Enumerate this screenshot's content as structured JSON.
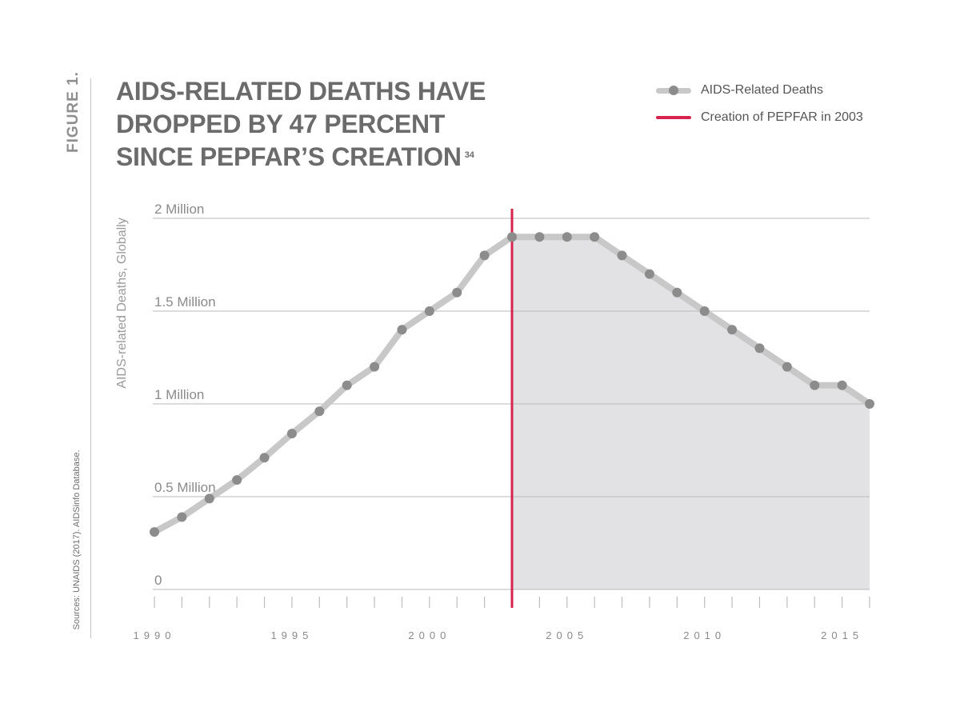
{
  "figure_label": "FIGURE 1.",
  "title_lines": [
    "AIDS-RELATED DEATHS HAVE",
    "DROPPED BY 47 PERCENT",
    "SINCE PEPFAR’S CREATION"
  ],
  "title_footnote": "34",
  "sources": "Sources: UNAIDS (2017). AIDSinfo Database.",
  "legend": {
    "series_label": "AIDS-Related Deaths",
    "marker_label": "Creation of PEPFAR in 2003"
  },
  "colors": {
    "line": "#c8c8c8",
    "point": "#8c8c8c",
    "fill": "#e2e2e4",
    "marker": "#d6244e",
    "grid": "#b9b9b9",
    "text": "#8a8a8a",
    "title": "#6b6b6b"
  },
  "chart_data": {
    "type": "line",
    "title": "AIDS-RELATED DEATHS HAVE DROPPED BY 47 PERCENT SINCE PEPFAR’S CREATION",
    "ylabel": "AIDS-related Deaths, Globally",
    "xlabel": "",
    "x": [
      1990,
      1991,
      1992,
      1993,
      1994,
      1995,
      1996,
      1997,
      1998,
      1999,
      2000,
      2001,
      2002,
      2003,
      2004,
      2005,
      2006,
      2007,
      2008,
      2009,
      2010,
      2011,
      2012,
      2013,
      2014,
      2015,
      2016
    ],
    "series": [
      {
        "name": "AIDS-Related Deaths",
        "values": [
          0.31,
          0.39,
          0.49,
          0.59,
          0.71,
          0.84,
          0.96,
          1.1,
          1.2,
          1.4,
          1.5,
          1.6,
          1.8,
          1.9,
          1.9,
          1.9,
          1.9,
          1.8,
          1.7,
          1.6,
          1.5,
          1.4,
          1.3,
          1.2,
          1.1,
          1.1,
          1.0
        ]
      }
    ],
    "marker": {
      "label": "Creation of PEPFAR in 2003",
      "x": 2003
    },
    "shaded_from_x": 2003,
    "ylim": [
      0,
      2
    ],
    "xlim": [
      1990,
      2016
    ],
    "y_ticks": [
      {
        "value": 0,
        "label": "0"
      },
      {
        "value": 0.5,
        "label": "0.5 Million"
      },
      {
        "value": 1,
        "label": "1 Million"
      },
      {
        "value": 1.5,
        "label": "1.5 Million"
      },
      {
        "value": 2,
        "label": "2 Million"
      }
    ],
    "x_tick_labels": [
      {
        "value": 1990,
        "label": "1990"
      },
      {
        "value": 1995,
        "label": "1995"
      },
      {
        "value": 2000,
        "label": "2000"
      },
      {
        "value": 2005,
        "label": "2005"
      },
      {
        "value": 2010,
        "label": "2010"
      },
      {
        "value": 2015,
        "label": "2015"
      }
    ],
    "grid": true,
    "legend_position": "top-right"
  }
}
